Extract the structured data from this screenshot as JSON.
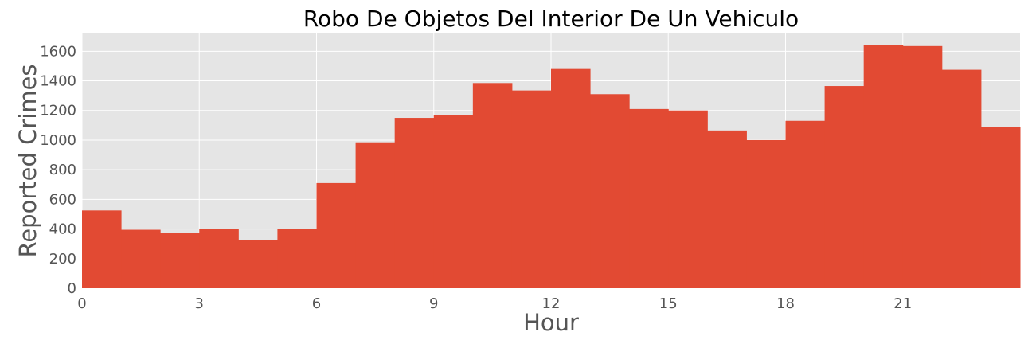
{
  "chart_data": {
    "type": "bar",
    "title": "Robo De Objetos Del Interior De Un Vehiculo",
    "xlabel": "Hour",
    "ylabel": "Reported Crimes",
    "categories": [
      0,
      1,
      2,
      3,
      4,
      5,
      6,
      7,
      8,
      9,
      10,
      11,
      12,
      13,
      14,
      15,
      16,
      17,
      18,
      19,
      20,
      21,
      22,
      23
    ],
    "values": [
      525,
      395,
      375,
      400,
      325,
      400,
      710,
      985,
      1150,
      1170,
      1385,
      1335,
      1480,
      1310,
      1210,
      1200,
      1065,
      1000,
      1130,
      1365,
      1640,
      1635,
      1475,
      1090
    ],
    "bin_width": 1,
    "xlim": [
      0,
      24
    ],
    "ylim": [
      0,
      1720
    ],
    "xticks": [
      0,
      3,
      6,
      9,
      12,
      15,
      18,
      21
    ],
    "yticks": [
      0,
      200,
      400,
      600,
      800,
      1000,
      1200,
      1400,
      1600
    ],
    "grid": true,
    "colors": {
      "bar": "#e24a33",
      "plot_background": "#e5e5e5",
      "grid": "#ffffff",
      "tick_text": "#555555",
      "title_text": "#000000"
    }
  }
}
